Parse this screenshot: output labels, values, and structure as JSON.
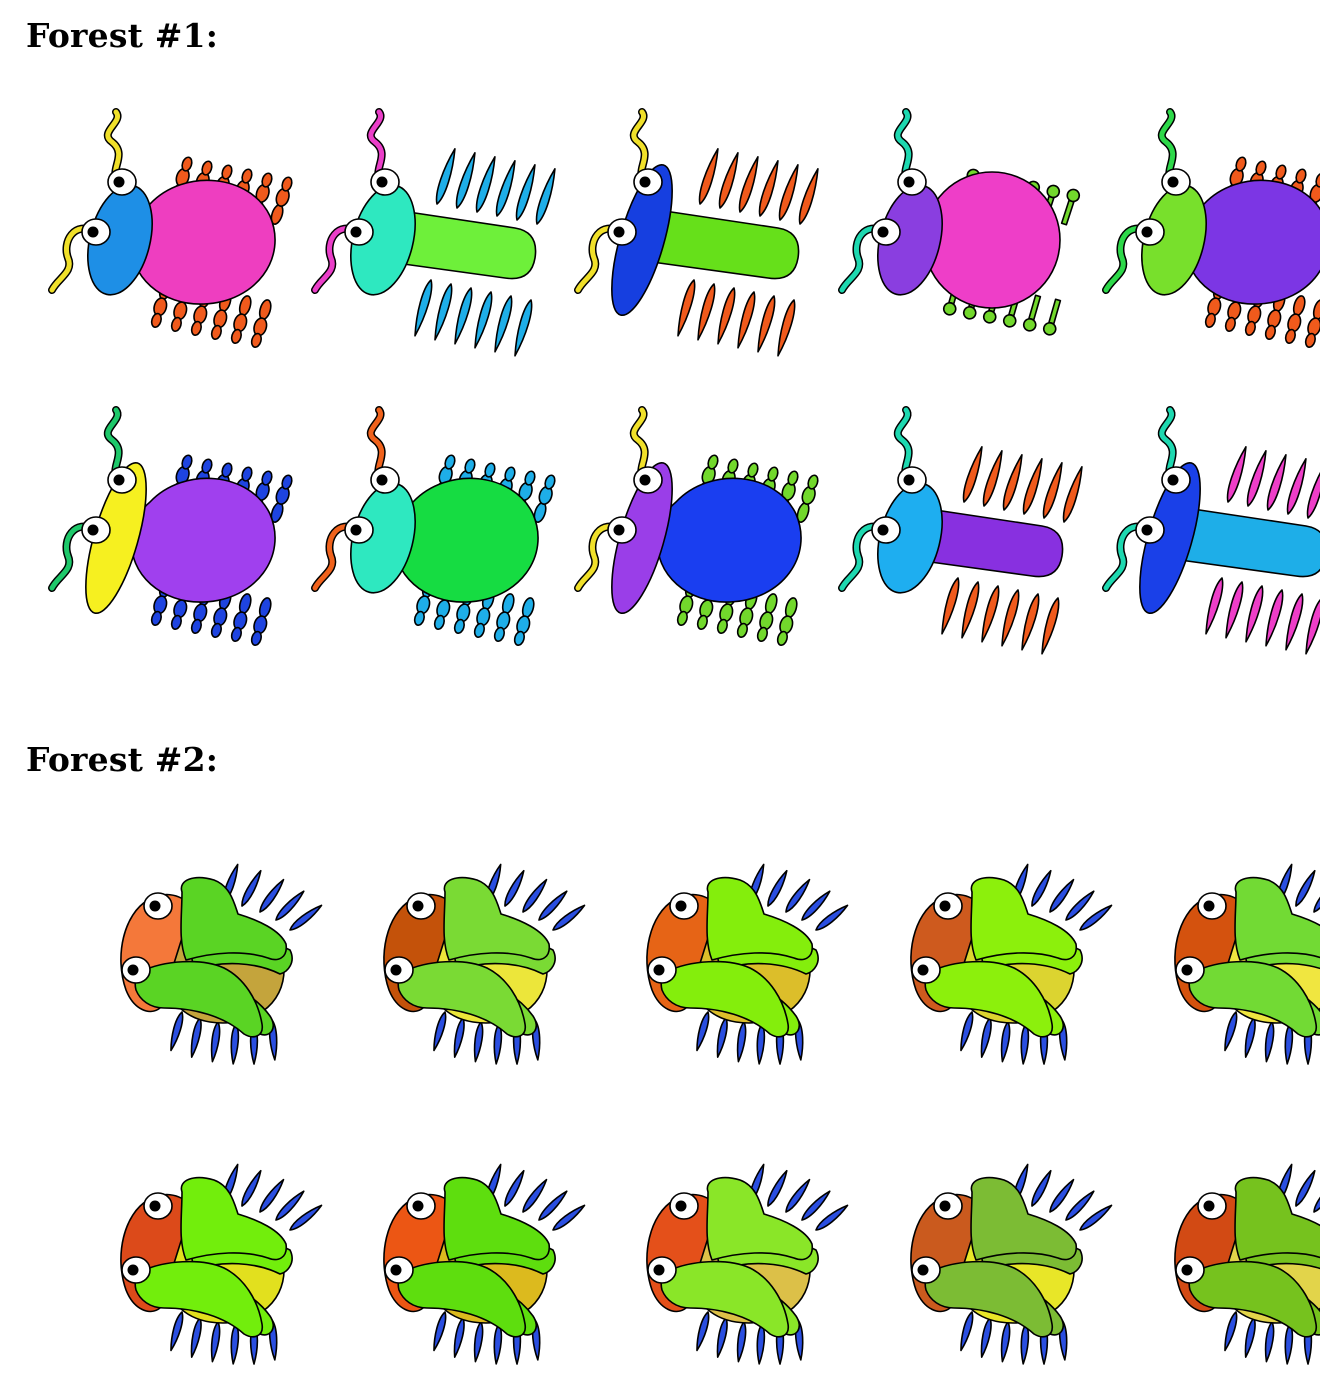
{
  "sections": [
    {
      "heading": "Forest #1:",
      "kind": "insect",
      "creatures": [
        {
          "antenna": "#f0e02a",
          "head": "#1e8fe6",
          "body": "#ee3ec0",
          "legs": "#f05a1c",
          "body_shape": "oval",
          "head_shape": "small",
          "leg_shape": "segment"
        },
        {
          "antenna": "#ea3ec8",
          "head": "#2ee8c0",
          "body": "#6ef03a",
          "legs": "#1eaee8",
          "body_shape": "rect",
          "head_shape": "small",
          "leg_shape": "long"
        },
        {
          "antenna": "#f0e02a",
          "head": "#163fe0",
          "body": "#66e01a",
          "legs": "#f05a1c",
          "body_shape": "rect",
          "head_shape": "tall",
          "leg_shape": "long"
        },
        {
          "antenna": "#1ed8b0",
          "head": "#8a3ee0",
          "body": "#ee3ec8",
          "legs": "#72d82c",
          "body_shape": "round",
          "head_shape": "small",
          "leg_shape": "bead"
        },
        {
          "antenna": "#2ed84a",
          "head": "#78e02c",
          "body": "#7c36e4",
          "legs": "#f05a1c",
          "body_shape": "oval",
          "head_shape": "small",
          "leg_shape": "segment"
        },
        {
          "antenna": "#1ec86a",
          "head": "#f6f020",
          "body": "#a040ee",
          "legs": "#1e44e0",
          "body_shape": "oval",
          "head_shape": "tall",
          "leg_shape": "segment"
        },
        {
          "antenna": "#f0621c",
          "head": "#2ee8c0",
          "body": "#16dc42",
          "legs": "#1eaee8",
          "body_shape": "oval",
          "head_shape": "small",
          "leg_shape": "segment"
        },
        {
          "antenna": "#f0e02a",
          "head": "#9a3ee8",
          "body": "#1a3ef0",
          "legs": "#72d82c",
          "body_shape": "oval",
          "head_shape": "tall",
          "leg_shape": "segment"
        },
        {
          "antenna": "#1ed8b0",
          "head": "#1eaef0",
          "body": "#8830e0",
          "legs": "#f05a1c",
          "body_shape": "rect",
          "head_shape": "small",
          "leg_shape": "long"
        },
        {
          "antenna": "#1ed8b0",
          "head": "#1a40e8",
          "body": "#1eaee8",
          "legs": "#ee3ec8",
          "body_shape": "rect",
          "head_shape": "tall",
          "leg_shape": "long"
        }
      ]
    },
    {
      "heading": "Forest #2:",
      "kind": "beetle",
      "creatures": [
        {
          "head": "#f4783a",
          "shell": "#c4a43c",
          "wings": "#5ad424",
          "legs": "#2a4ee0"
        },
        {
          "head": "#c4520a",
          "shell": "#ece63a",
          "wings": "#7ada34",
          "legs": "#2a4ee0"
        },
        {
          "head": "#e66416",
          "shell": "#dcbe2a",
          "wings": "#84ee0c",
          "legs": "#2a4ee0"
        },
        {
          "head": "#ce5a1e",
          "shell": "#dcd430",
          "wings": "#8cf00c",
          "legs": "#2a4ee0"
        },
        {
          "head": "#d4520e",
          "shell": "#f0e640",
          "wings": "#72da34",
          "legs": "#2a4ee0"
        },
        {
          "head": "#dc4a1a",
          "shell": "#e2e01e",
          "wings": "#72ee0c",
          "legs": "#2a4ee0"
        },
        {
          "head": "#ec5614",
          "shell": "#dcba1e",
          "wings": "#5ede0e",
          "legs": "#2a4ee0"
        },
        {
          "head": "#e4501a",
          "shell": "#dcc048",
          "wings": "#8ae628",
          "legs": "#2a4ee0"
        },
        {
          "head": "#ca5a1e",
          "shell": "#e8e628",
          "wings": "#7cbc34",
          "legs": "#2a4ee0"
        },
        {
          "head": "#d24a14",
          "shell": "#e2d44a",
          "wings": "#76c21e",
          "legs": "#2a4ee0"
        }
      ]
    }
  ]
}
